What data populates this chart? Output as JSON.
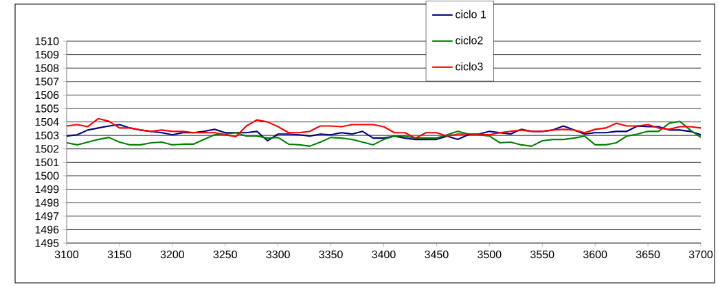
{
  "chart_data": {
    "type": "line",
    "x": [
      3100,
      3110,
      3120,
      3130,
      3140,
      3150,
      3160,
      3170,
      3180,
      3190,
      3200,
      3210,
      3220,
      3230,
      3240,
      3250,
      3260,
      3270,
      3280,
      3290,
      3300,
      3310,
      3320,
      3330,
      3340,
      3350,
      3360,
      3370,
      3380,
      3390,
      3400,
      3410,
      3420,
      3430,
      3440,
      3450,
      3460,
      3470,
      3480,
      3490,
      3500,
      3510,
      3520,
      3530,
      3540,
      3550,
      3560,
      3570,
      3580,
      3590,
      3600,
      3610,
      3620,
      3630,
      3640,
      3650,
      3660,
      3670,
      3680,
      3690,
      3700
    ],
    "series": [
      {
        "name": "ciclo 1",
        "color": "#000080",
        "values": [
          1502.95,
          1503.05,
          1503.4,
          1503.55,
          1503.7,
          1503.8,
          1503.55,
          1503.4,
          1503.3,
          1503.2,
          1503.05,
          1503.2,
          1503.2,
          1503.3,
          1503.45,
          1503.2,
          1503.2,
          1503.2,
          1503.3,
          1502.6,
          1503.1,
          1503.1,
          1503.05,
          1502.95,
          1503.1,
          1503.05,
          1503.2,
          1503.1,
          1503.3,
          1502.8,
          1502.8,
          1502.95,
          1502.8,
          1502.7,
          1502.7,
          1502.7,
          1502.95,
          1502.7,
          1503.05,
          1503.1,
          1503.3,
          1503.2,
          1503.1,
          1503.45,
          1503.3,
          1503.3,
          1503.4,
          1503.7,
          1503.4,
          1503.1,
          1503.2,
          1503.2,
          1503.3,
          1503.3,
          1503.7,
          1503.65,
          1503.65,
          1503.4,
          1503.4,
          1503.3,
          1503.05
        ]
      },
      {
        "name": "ciclo2",
        "color": "#008000",
        "values": [
          1502.45,
          1502.3,
          1502.5,
          1502.7,
          1502.85,
          1502.5,
          1502.3,
          1502.3,
          1502.45,
          1502.5,
          1502.3,
          1502.35,
          1502.35,
          1502.7,
          1503.05,
          1503.1,
          1503.2,
          1502.95,
          1502.95,
          1502.8,
          1502.85,
          1502.35,
          1502.3,
          1502.2,
          1502.5,
          1502.85,
          1502.8,
          1502.7,
          1502.5,
          1502.3,
          1502.7,
          1502.95,
          1502.95,
          1502.8,
          1502.8,
          1502.8,
          1503.05,
          1503.3,
          1503.1,
          1503.05,
          1502.95,
          1502.45,
          1502.5,
          1502.3,
          1502.2,
          1502.6,
          1502.7,
          1502.7,
          1502.8,
          1502.95,
          1502.3,
          1502.3,
          1502.45,
          1502.95,
          1503.1,
          1503.3,
          1503.3,
          1503.9,
          1504.05,
          1503.4,
          1502.85
        ]
      },
      {
        "name": "ciclo3",
        "color": "#ff0000",
        "values": [
          1503.7,
          1503.8,
          1503.65,
          1504.25,
          1504.05,
          1503.55,
          1503.55,
          1503.4,
          1503.3,
          1503.4,
          1503.3,
          1503.3,
          1503.2,
          1503.2,
          1503.2,
          1503.05,
          1502.9,
          1503.7,
          1504.15,
          1504.0,
          1503.65,
          1503.2,
          1503.2,
          1503.3,
          1503.7,
          1503.7,
          1503.65,
          1503.8,
          1503.8,
          1503.8,
          1503.65,
          1503.2,
          1503.2,
          1502.8,
          1503.2,
          1503.2,
          1502.95,
          1503.1,
          1503.1,
          1503.1,
          1503.05,
          1503.2,
          1503.3,
          1503.4,
          1503.3,
          1503.3,
          1503.4,
          1503.45,
          1503.4,
          1503.2,
          1503.45,
          1503.55,
          1503.9,
          1503.7,
          1503.7,
          1503.8,
          1503.55,
          1503.45,
          1503.65,
          1503.65,
          1503.55
        ]
      }
    ],
    "xlim": [
      3100,
      3700
    ],
    "xticks": [
      3100,
      3150,
      3200,
      3250,
      3300,
      3350,
      3400,
      3450,
      3500,
      3550,
      3600,
      3650,
      3700
    ],
    "ylim": [
      1495,
      1510
    ],
    "yticks": [
      1495,
      1496,
      1497,
      1498,
      1499,
      1500,
      1501,
      1502,
      1503,
      1504,
      1505,
      1506,
      1507,
      1508,
      1509,
      1510
    ],
    "grid": "y",
    "legend": "top",
    "marker": "none",
    "line_style": "solid"
  }
}
